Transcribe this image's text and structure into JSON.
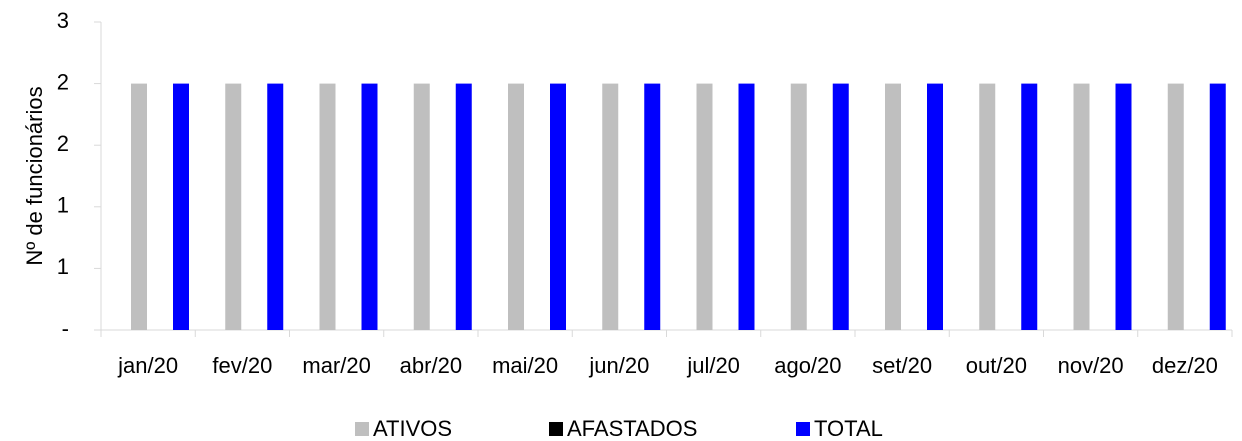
{
  "chart_data": {
    "type": "bar",
    "y_label": "Nº de funcionários",
    "categories": [
      "jan/20",
      "fev/20",
      "mar/20",
      "abr/20",
      "mai/20",
      "jun/20",
      "jul/20",
      "ago/20",
      "set/20",
      "out/20",
      "nov/20",
      "dez/20"
    ],
    "series": [
      {
        "name": "ATIVOS",
        "color": "#bfbfbf",
        "values": [
          2,
          2,
          2,
          2,
          2,
          2,
          2,
          2,
          2,
          2,
          2,
          2
        ]
      },
      {
        "name": "AFASTADOS",
        "color": "#000000",
        "values": [
          0,
          0,
          0,
          0,
          0,
          0,
          0,
          0,
          0,
          0,
          0,
          0
        ]
      },
      {
        "name": "TOTAL",
        "color": "#0000ff",
        "values": [
          2,
          2,
          2,
          2,
          2,
          2,
          2,
          2,
          2,
          2,
          2,
          2
        ]
      }
    ],
    "ylim": [
      0,
      2.5
    ],
    "yticks": [
      {
        "value": 0,
        "label": "-"
      },
      {
        "value": 0.5,
        "label": "1"
      },
      1,
      {
        "value": 1.5,
        "label": "2"
      },
      2,
      {
        "value": 2.5,
        "label": "3"
      }
    ],
    "grid": false,
    "legend": "bottom"
  }
}
